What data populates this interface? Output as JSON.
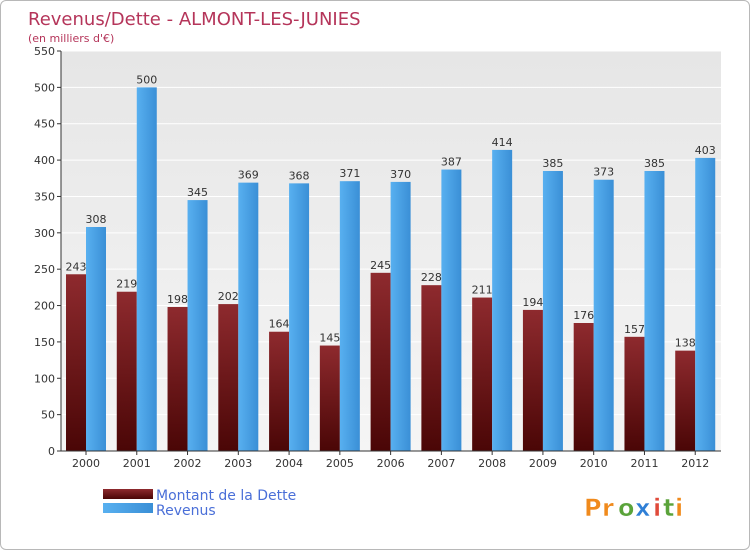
{
  "chart_data": {
    "type": "bar",
    "title": "Revenus/Dette - ALMONT-LES-JUNIES",
    "subtitle": "(en milliers d'€)",
    "categories": [
      "2000",
      "2001",
      "2002",
      "2003",
      "2004",
      "2005",
      "2006",
      "2007",
      "2008",
      "2009",
      "2010",
      "2011",
      "2012"
    ],
    "series": [
      {
        "name": "Montant de la Dette",
        "color": "#7a1e22",
        "values": [
          243,
          219,
          198,
          202,
          164,
          145,
          245,
          228,
          211,
          194,
          176,
          157,
          138
        ]
      },
      {
        "name": "Revenus",
        "color": "#4aa3e6",
        "values": [
          308,
          500,
          345,
          369,
          368,
          371,
          370,
          387,
          414,
          385,
          373,
          385,
          403
        ]
      }
    ],
    "yticks": [
      0,
      50,
      100,
      150,
      200,
      250,
      300,
      350,
      400,
      450,
      500,
      550
    ],
    "ylim": [
      0,
      550
    ],
    "grid": true,
    "xlabel": "",
    "ylabel": "",
    "legend_position": "bottom-left"
  },
  "brand": {
    "name": "Proxiti",
    "letters": [
      "P",
      "r",
      "o",
      "x",
      "i",
      "t",
      "i"
    ],
    "colors": [
      "#f08a1c",
      "#f08a1c",
      "#5aa33a",
      "#2f7fd6",
      "#e04a3a",
      "#5aa33a",
      "#f08a1c"
    ]
  }
}
